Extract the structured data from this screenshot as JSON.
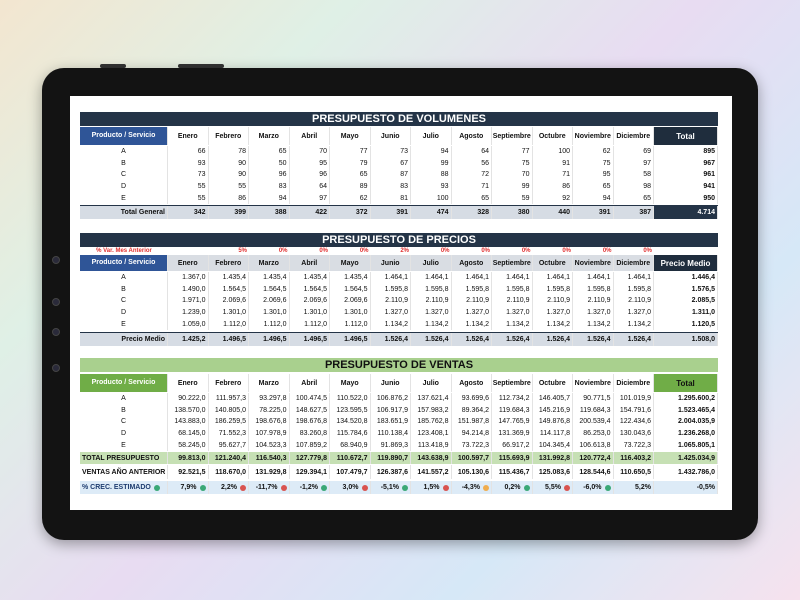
{
  "volumes": {
    "title": "PRESUPUESTO DE VOLUMENES",
    "header": [
      "Producto / Servicio",
      "Enero",
      "Febrero",
      "Marzo",
      "Abril",
      "Mayo",
      "Junio",
      "Julio",
      "Agosto",
      "Septiembre",
      "Octubre",
      "Noviembre",
      "Diciembre",
      "Total"
    ],
    "rows": [
      [
        "A",
        "66",
        "78",
        "65",
        "70",
        "77",
        "73",
        "94",
        "64",
        "77",
        "100",
        "62",
        "69",
        "895"
      ],
      [
        "B",
        "93",
        "90",
        "50",
        "95",
        "79",
        "67",
        "99",
        "56",
        "75",
        "91",
        "75",
        "97",
        "967"
      ],
      [
        "C",
        "73",
        "90",
        "96",
        "96",
        "65",
        "87",
        "88",
        "72",
        "70",
        "71",
        "95",
        "58",
        "961"
      ],
      [
        "D",
        "55",
        "55",
        "83",
        "64",
        "89",
        "83",
        "93",
        "71",
        "99",
        "86",
        "65",
        "98",
        "941"
      ],
      [
        "E",
        "55",
        "86",
        "94",
        "97",
        "62",
        "81",
        "100",
        "65",
        "59",
        "92",
        "94",
        "65",
        "950"
      ]
    ],
    "total": [
      "Total General",
      "342",
      "399",
      "388",
      "422",
      "372",
      "391",
      "474",
      "328",
      "380",
      "440",
      "391",
      "387",
      "4.714"
    ]
  },
  "prices": {
    "title": "PRESUPUESTO DE PRECIOS",
    "variation": {
      "label": "% Var. Mes Anterior",
      "values": [
        "5%",
        "0%",
        "0%",
        "0%",
        "2%",
        "0%",
        "0%",
        "0%",
        "0%",
        "0%",
        "0%"
      ]
    },
    "header": [
      "Producto / Servicio",
      "Enero",
      "Febrero",
      "Marzo",
      "Abril",
      "Mayo",
      "Junio",
      "Julio",
      "Agosto",
      "Septiembre",
      "Octubre",
      "Noviembre",
      "Diciembre",
      "Precio Medio"
    ],
    "rows": [
      [
        "A",
        "1.367,0",
        "1.435,4",
        "1.435,4",
        "1.435,4",
        "1.435,4",
        "1.464,1",
        "1.464,1",
        "1.464,1",
        "1.464,1",
        "1.464,1",
        "1.464,1",
        "1.464,1",
        "1.446,4"
      ],
      [
        "B",
        "1.490,0",
        "1.564,5",
        "1.564,5",
        "1.564,5",
        "1.564,5",
        "1.595,8",
        "1.595,8",
        "1.595,8",
        "1.595,8",
        "1.595,8",
        "1.595,8",
        "1.595,8",
        "1.576,5"
      ],
      [
        "C",
        "1.971,0",
        "2.069,6",
        "2.069,6",
        "2.069,6",
        "2.069,6",
        "2.110,9",
        "2.110,9",
        "2.110,9",
        "2.110,9",
        "2.110,9",
        "2.110,9",
        "2.110,9",
        "2.085,5"
      ],
      [
        "D",
        "1.239,0",
        "1.301,0",
        "1.301,0",
        "1.301,0",
        "1.301,0",
        "1.327,0",
        "1.327,0",
        "1.327,0",
        "1.327,0",
        "1.327,0",
        "1.327,0",
        "1.327,0",
        "1.311,0"
      ],
      [
        "E",
        "1.059,0",
        "1.112,0",
        "1.112,0",
        "1.112,0",
        "1.112,0",
        "1.134,2",
        "1.134,2",
        "1.134,2",
        "1.134,2",
        "1.134,2",
        "1.134,2",
        "1.134,2",
        "1.120,5"
      ]
    ],
    "total": [
      "Precio Medio",
      "1.425,2",
      "1.496,5",
      "1.496,5",
      "1.496,5",
      "1.496,5",
      "1.526,4",
      "1.526,4",
      "1.526,4",
      "1.526,4",
      "1.526,4",
      "1.526,4",
      "1.526,4",
      "1.508,0"
    ]
  },
  "sales": {
    "title": "PRESUPUESTO DE VENTAS",
    "header": [
      "Producto / Servicio",
      "Enero",
      "Febrero",
      "Marzo",
      "Abril",
      "Mayo",
      "Junio",
      "Julio",
      "Agosto",
      "Septiembre",
      "Octubre",
      "Noviembre",
      "Diciembre",
      "Total"
    ],
    "rows": [
      [
        "A",
        "90.222,0",
        "111.957,3",
        "93.297,8",
        "100.474,5",
        "110.522,0",
        "106.876,2",
        "137.621,4",
        "93.699,6",
        "112.734,2",
        "146.405,7",
        "90.771,5",
        "101.019,9",
        "1.295.600,2"
      ],
      [
        "B",
        "138.570,0",
        "140.805,0",
        "78.225,0",
        "148.627,5",
        "123.595,5",
        "106.917,9",
        "157.983,2",
        "89.364,2",
        "119.684,3",
        "145.216,9",
        "119.684,3",
        "154.791,6",
        "1.523.465,4"
      ],
      [
        "C",
        "143.883,0",
        "186.259,5",
        "198.676,8",
        "198.676,8",
        "134.520,8",
        "183.651,9",
        "185.762,8",
        "151.987,8",
        "147.765,9",
        "149.876,8",
        "200.539,4",
        "122.434,6",
        "2.004.035,9"
      ],
      [
        "D",
        "68.145,0",
        "71.552,3",
        "107.978,9",
        "83.260,8",
        "115.784,6",
        "110.138,4",
        "123.408,1",
        "94.214,8",
        "131.369,9",
        "114.117,8",
        "86.253,0",
        "130.043,6",
        "1.236.268,0"
      ],
      [
        "E",
        "58.245,0",
        "95.627,7",
        "104.523,3",
        "107.859,2",
        "68.940,9",
        "91.869,3",
        "113.418,9",
        "73.722,3",
        "66.917,2",
        "104.345,4",
        "106.613,8",
        "73.722,3",
        "1.065.805,1"
      ]
    ],
    "total_budget": [
      "TOTAL PRESUPUESTO",
      "99.813,0",
      "121.240,4",
      "116.540,3",
      "127.779,8",
      "110.672,7",
      "119.890,7",
      "143.638,9",
      "100.597,7",
      "115.693,9",
      "131.992,8",
      "120.772,4",
      "116.403,2",
      "1.425.034,9"
    ],
    "previous_year": [
      "VENTAS AÑO ANTERIOR",
      "92.521,5",
      "118.670,0",
      "131.929,8",
      "129.394,1",
      "107.479,7",
      "126.387,6",
      "141.557,2",
      "105.130,6",
      "115.436,7",
      "125.083,6",
      "128.544,6",
      "110.650,5",
      "1.432.786,0"
    ],
    "growth": [
      "% CREC. ESTIMADO",
      "7,9%",
      "2,2%",
      "-11,7%",
      "-1,2%",
      "3,0%",
      "-5,1%",
      "1,5%",
      "-4,3%",
      "0,2%",
      "5,5%",
      "-6,0%",
      "5,2%",
      "-0,5%"
    ]
  }
}
